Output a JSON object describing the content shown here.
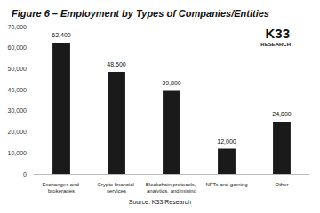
{
  "chart_data": {
    "type": "bar",
    "title": "Figure 6 – Employment by Types of Companies/Entities",
    "categories": [
      "Exchanges and brokerages",
      "Crypto financial services",
      "Blockchain protocols, analytics, and mining",
      "NFTs and gaming",
      "Other"
    ],
    "values": [
      62400,
      48500,
      39800,
      12000,
      24800
    ],
    "value_labels": [
      "62,400",
      "48,500",
      "39,800",
      "12,000",
      "24,800"
    ],
    "data_labels": true,
    "color": "#1a1a1a",
    "ylim": [
      0,
      70000
    ],
    "yticks": [
      0,
      {
        "value": 10000,
        "label": "10,000"
      },
      {
        "value": 20000,
        "label": "20,000"
      },
      {
        "value": 30000,
        "label": "30,000"
      },
      {
        "value": 40000,
        "label": "40,000"
      },
      {
        "value": 50000,
        "label": "50,000"
      },
      {
        "value": 60000,
        "label": "60,000"
      },
      {
        "value": 70000,
        "label": "70,000"
      }
    ],
    "grid": false,
    "logo": [
      "K33",
      "RESEARCH"
    ],
    "source": "Source: K33 Research"
  }
}
